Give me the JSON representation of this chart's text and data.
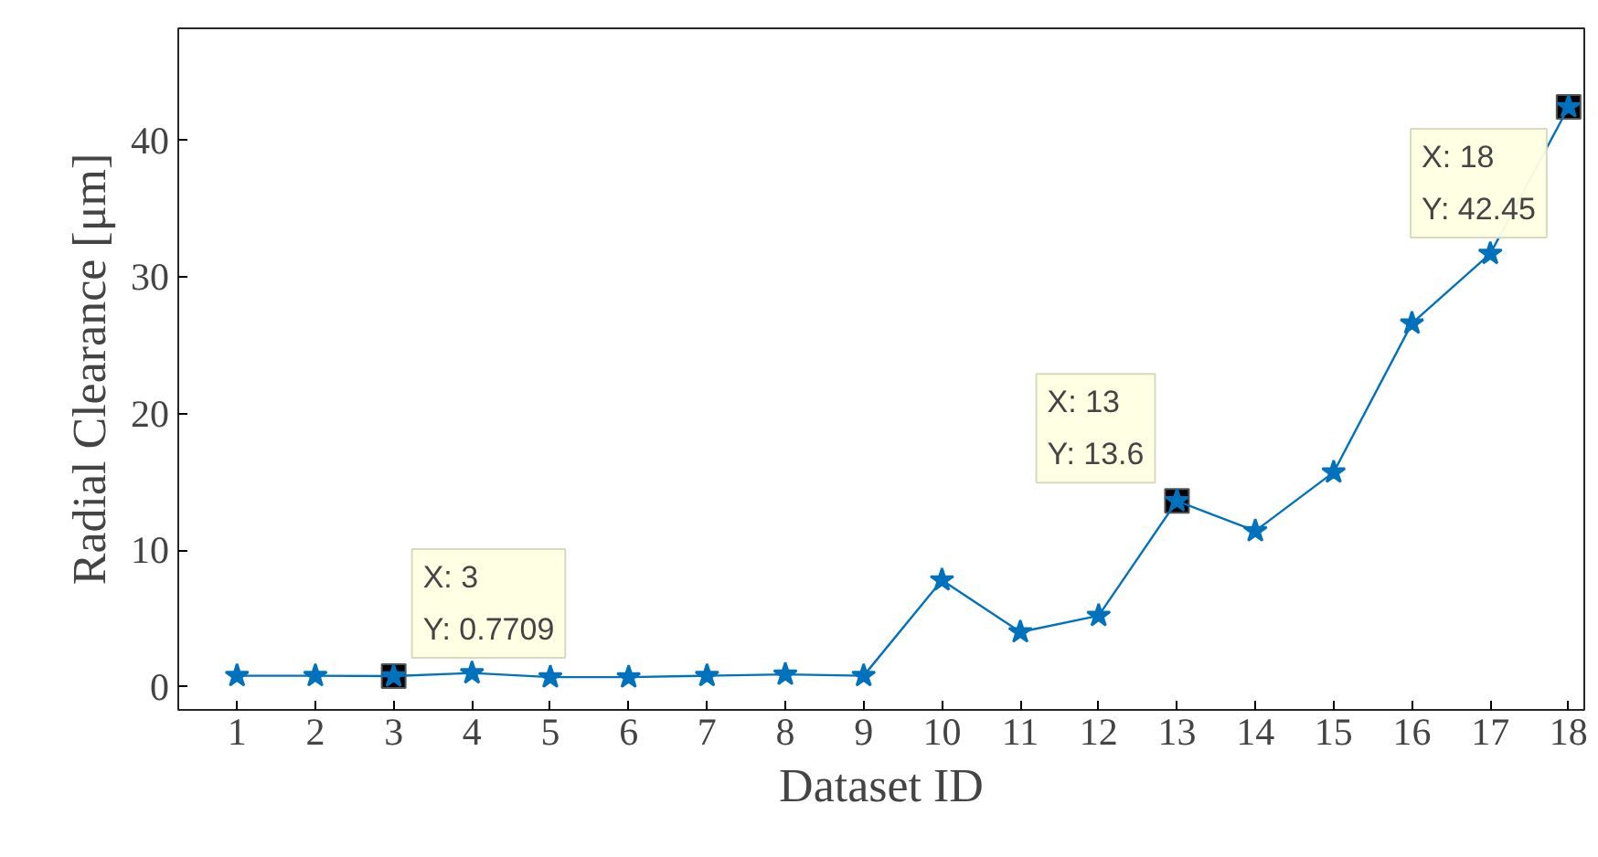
{
  "chart_data": {
    "type": "line",
    "xlabel": "Dataset ID",
    "ylabel": "Radial Clearance [μm]",
    "x": [
      1,
      2,
      3,
      4,
      5,
      6,
      7,
      8,
      9,
      10,
      11,
      12,
      13,
      14,
      15,
      16,
      17,
      18
    ],
    "series": [
      {
        "color": "#0072bd",
        "values": [
          0.8,
          0.8,
          0.7709,
          1.0,
          0.7,
          0.7,
          0.8,
          0.9,
          0.8,
          7.8,
          4.0,
          5.2,
          13.6,
          11.4,
          15.7,
          26.6,
          31.7,
          42.45
        ]
      }
    ],
    "xlim": [
      0.25,
      18.2
    ],
    "ylim": [
      -1.7,
      48.2
    ],
    "xticks": [
      1,
      2,
      3,
      4,
      5,
      6,
      7,
      8,
      9,
      10,
      11,
      12,
      13,
      14,
      15,
      16,
      17,
      18
    ],
    "yticks": [
      0,
      10,
      20,
      30,
      40
    ],
    "marker": "star",
    "line_style": "solid",
    "grid": false,
    "annotations": [
      {
        "text": "X: 3\nY: 0.7709",
        "x": 3,
        "y": 0.7709
      },
      {
        "text": "X: 13\nY: 13.6",
        "x": 13,
        "y": 13.6
      },
      {
        "text": "X: 18\nY: 42.45",
        "x": 18,
        "y": 42.45
      }
    ]
  }
}
